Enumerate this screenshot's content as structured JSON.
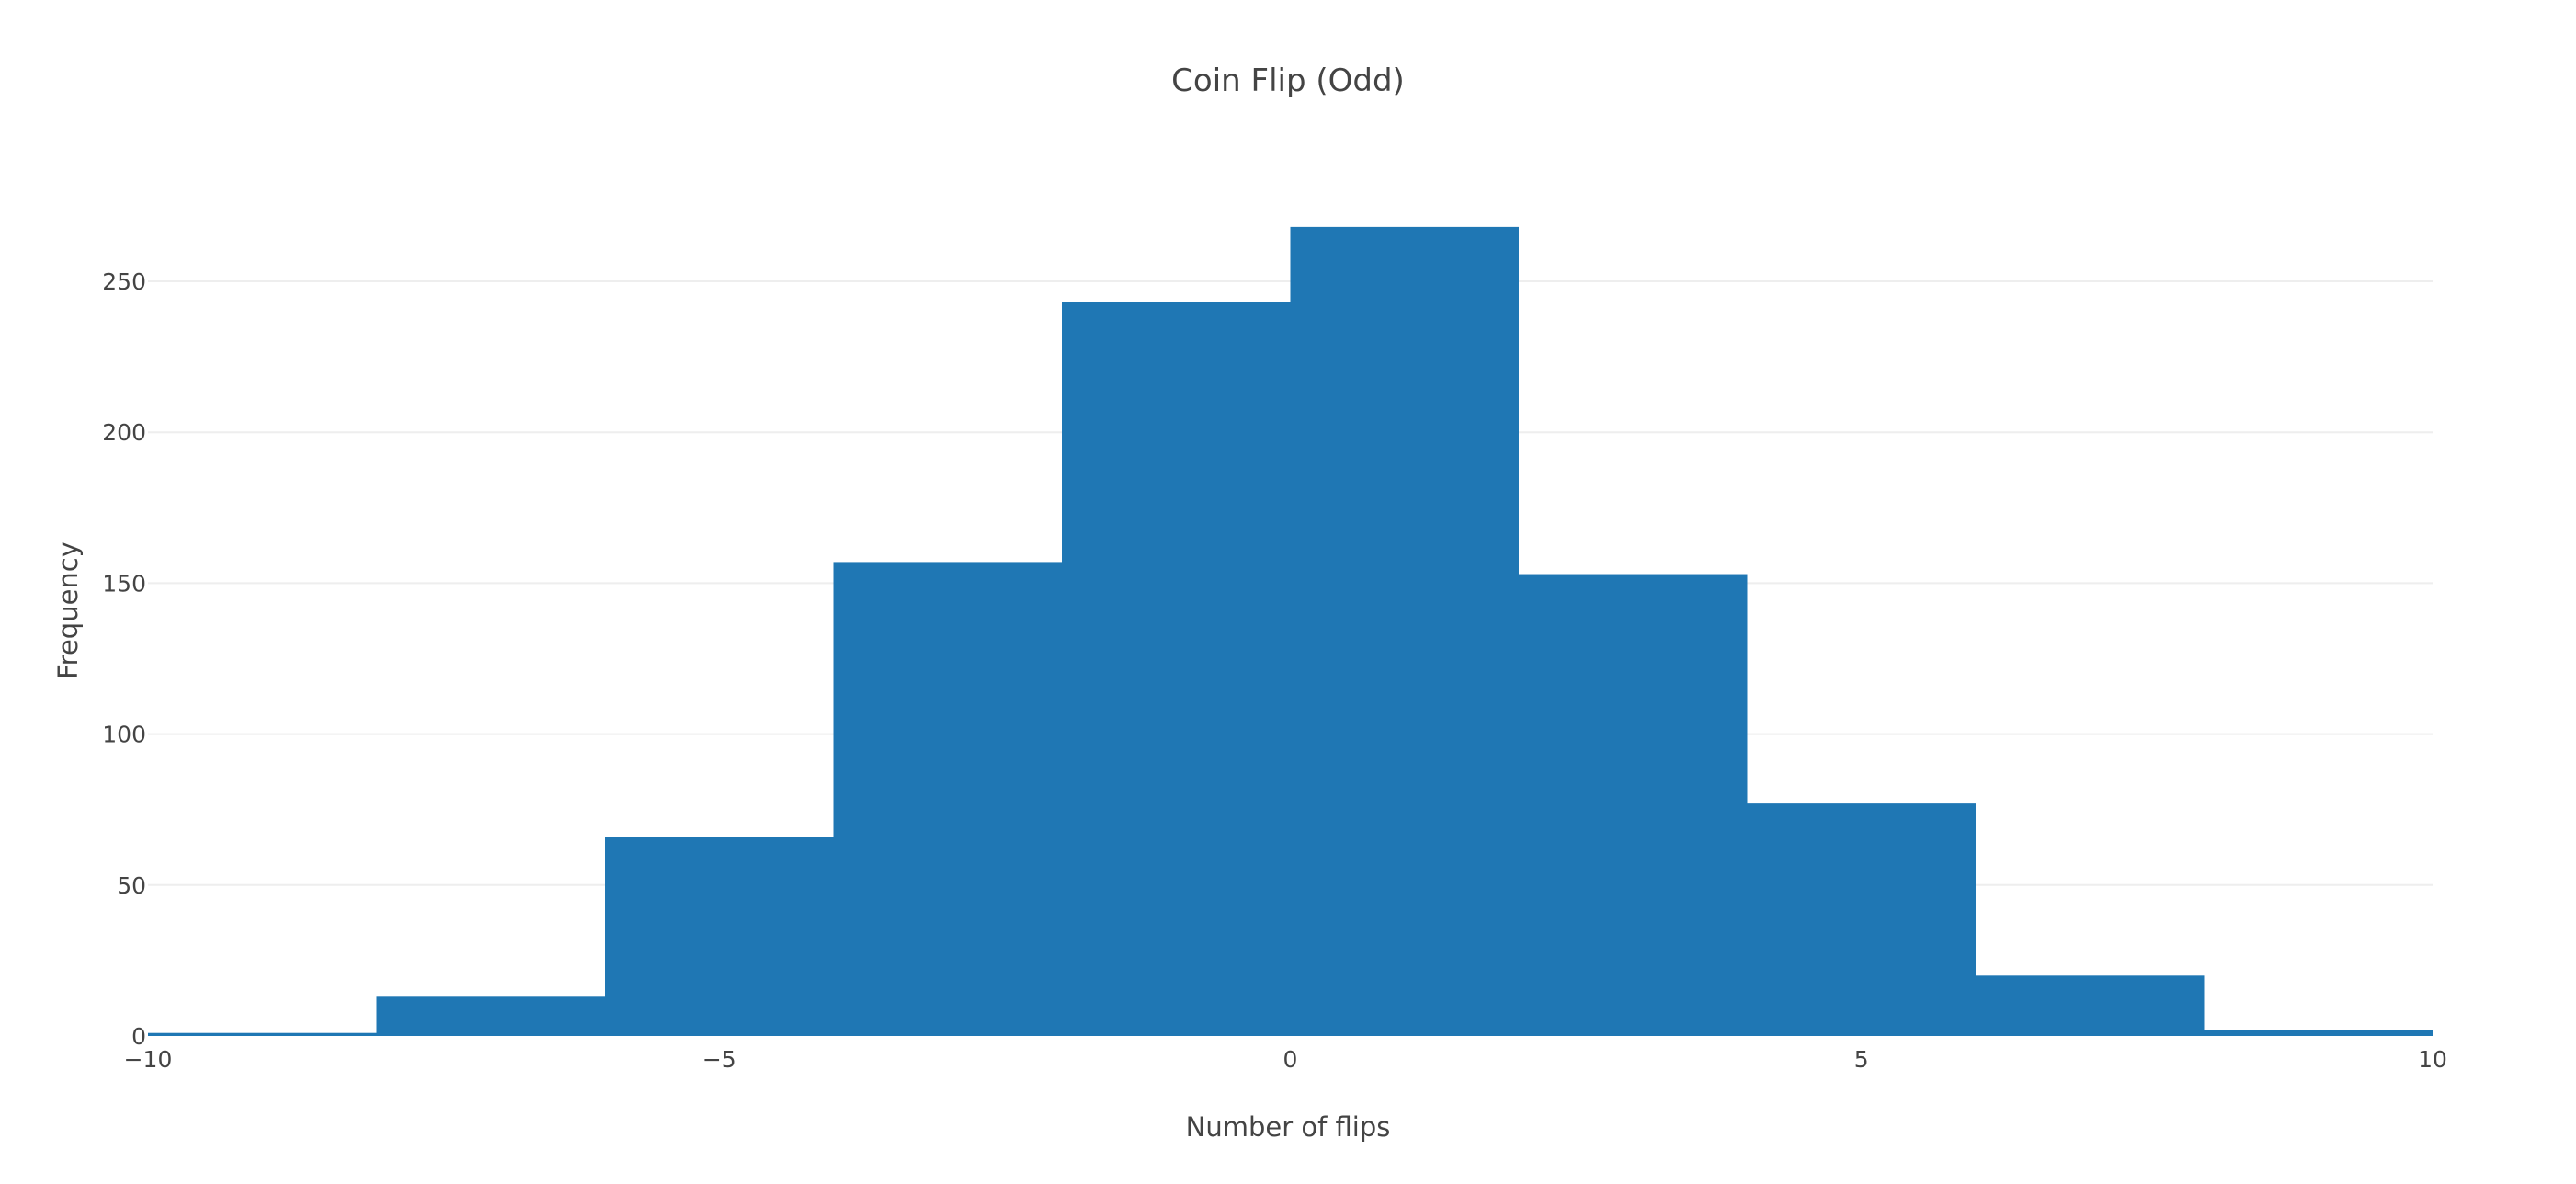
{
  "chart_data": {
    "type": "bar",
    "title": "Coin Flip (Odd)",
    "xlabel": "Number of flips",
    "ylabel": "Frequency",
    "xlim": [
      -10,
      10
    ],
    "ylim": [
      0,
      275
    ],
    "grid": true,
    "bar_color": "#1f77b4",
    "bins": [
      {
        "x0": -10,
        "x1": -8,
        "value": 1
      },
      {
        "x0": -8,
        "x1": -6,
        "value": 13
      },
      {
        "x0": -6,
        "x1": -4,
        "value": 66
      },
      {
        "x0": -4,
        "x1": -2,
        "value": 157
      },
      {
        "x0": -2,
        "x1": 0,
        "value": 243
      },
      {
        "x0": 0,
        "x1": 2,
        "value": 268
      },
      {
        "x0": 2,
        "x1": 4,
        "value": 153
      },
      {
        "x0": 4,
        "x1": 6,
        "value": 77
      },
      {
        "x0": 6,
        "x1": 8,
        "value": 20
      },
      {
        "x0": 8,
        "x1": 10,
        "value": 2
      }
    ],
    "x_ticks": [
      {
        "value": -10,
        "label": "−10"
      },
      {
        "value": -5,
        "label": "−5"
      },
      {
        "value": 0,
        "label": "0"
      },
      {
        "value": 5,
        "label": "5"
      },
      {
        "value": 10,
        "label": "10"
      }
    ],
    "y_ticks": [
      {
        "value": 0,
        "label": "0"
      },
      {
        "value": 50,
        "label": "50"
      },
      {
        "value": 100,
        "label": "100"
      },
      {
        "value": 150,
        "label": "150"
      },
      {
        "value": 200,
        "label": "200"
      },
      {
        "value": 250,
        "label": "250"
      }
    ]
  }
}
